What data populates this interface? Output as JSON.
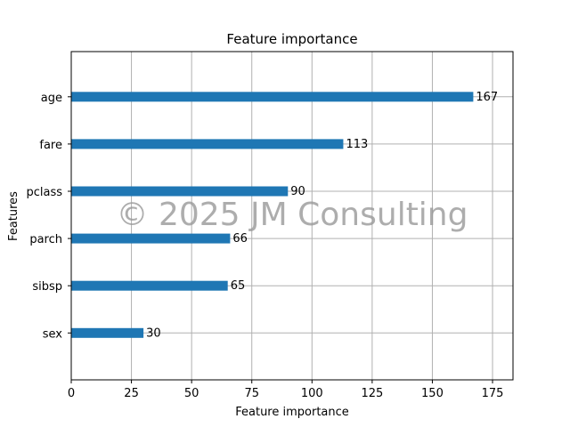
{
  "chart_data": {
    "type": "bar",
    "orientation": "horizontal",
    "title": "Feature importance",
    "xlabel": "Feature importance",
    "ylabel": "Features",
    "categories": [
      "sex",
      "sibsp",
      "parch",
      "pclass",
      "fare",
      "age"
    ],
    "values": [
      30,
      65,
      66,
      90,
      113,
      167
    ],
    "xlim": [
      0,
      183.5
    ],
    "xticks": [
      "0",
      "25",
      "50",
      "75",
      "100",
      "125",
      "150",
      "175"
    ],
    "grid": true,
    "bar_color": "#1f77b4"
  },
  "watermark": "© 2025 JM Consulting"
}
